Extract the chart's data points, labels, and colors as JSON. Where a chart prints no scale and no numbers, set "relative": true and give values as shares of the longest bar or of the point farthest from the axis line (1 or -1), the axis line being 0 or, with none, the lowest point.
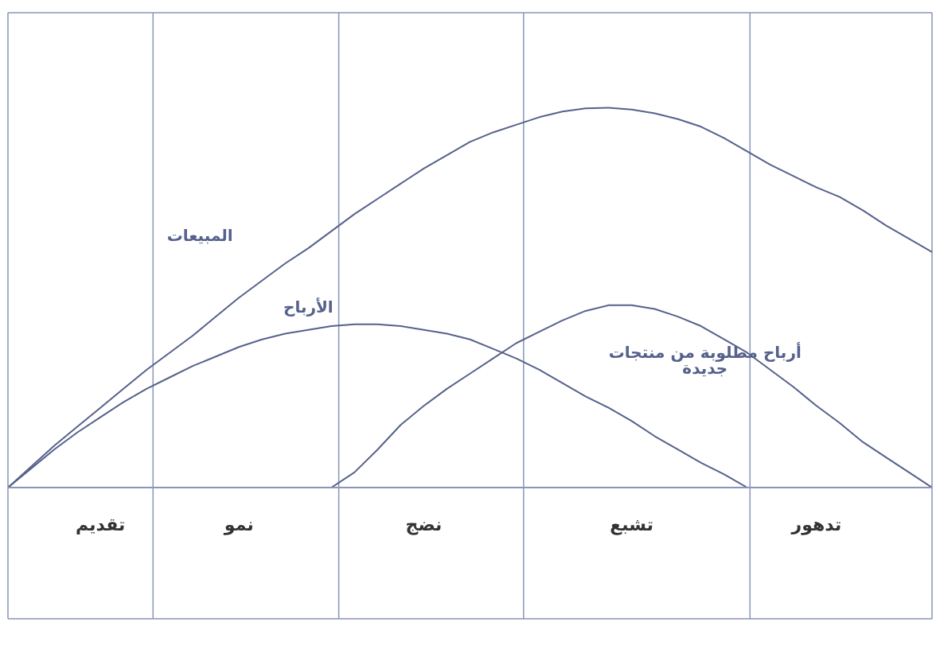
{
  "chart_data": {
    "type": "line",
    "relative": true,
    "categories": [
      null,
      null,
      null,
      null,
      "تقديم",
      null,
      null,
      null,
      null,
      null,
      "نمو",
      null,
      null,
      null,
      null,
      null,
      null,
      null,
      "نضج",
      null,
      null,
      null,
      null,
      null,
      null,
      null,
      null,
      "تشبع",
      null,
      null,
      null,
      null,
      null,
      null,
      null,
      "تدهور",
      null,
      null,
      null,
      null,
      null
    ],
    "series": [
      {
        "name": "المبيعات",
        "color": "#56618c",
        "values": [
          0,
          0.055,
          0.11,
          0.16,
          0.21,
          0.26,
          0.31,
          0.355,
          0.4,
          0.45,
          0.5,
          0.545,
          0.59,
          0.63,
          0.675,
          0.72,
          0.76,
          0.8,
          0.84,
          0.875,
          0.91,
          0.935,
          0.955,
          0.975,
          0.99,
          0.998,
          1,
          0.995,
          0.985,
          0.97,
          0.95,
          0.92,
          0.885,
          0.85,
          0.82,
          0.79,
          0.765,
          0.73,
          0.69,
          0.655,
          0.62
        ]
      },
      {
        "name": "الأرباح",
        "color": "#56618c",
        "values": [
          0,
          0.05,
          0.1,
          0.145,
          0.185,
          0.225,
          0.26,
          0.29,
          0.32,
          0.345,
          0.37,
          0.39,
          0.405,
          0.415,
          0.425,
          0.43,
          0.43,
          0.425,
          0.415,
          0.405,
          0.39,
          0.365,
          0.34,
          0.31,
          0.275,
          0.24,
          0.21,
          0.175,
          0.135,
          0.1,
          0.065,
          0.035,
          0,
          null,
          null,
          null,
          null,
          null,
          null,
          null,
          null
        ]
      },
      {
        "name": "أرباح مطلوبة من منتجات جديدة",
        "color": "#56618c",
        "values": [
          null,
          null,
          null,
          null,
          null,
          null,
          null,
          null,
          null,
          null,
          null,
          null,
          null,
          null,
          0,
          0.04,
          0.1,
          0.165,
          0.215,
          0.26,
          0.3,
          0.34,
          0.38,
          0.41,
          0.44,
          0.465,
          0.48,
          0.48,
          0.47,
          0.45,
          0.425,
          0.39,
          0.355,
          0.31,
          0.265,
          0.215,
          0.17,
          0.12,
          0.08,
          0.04,
          0
        ]
      }
    ]
  }
}
